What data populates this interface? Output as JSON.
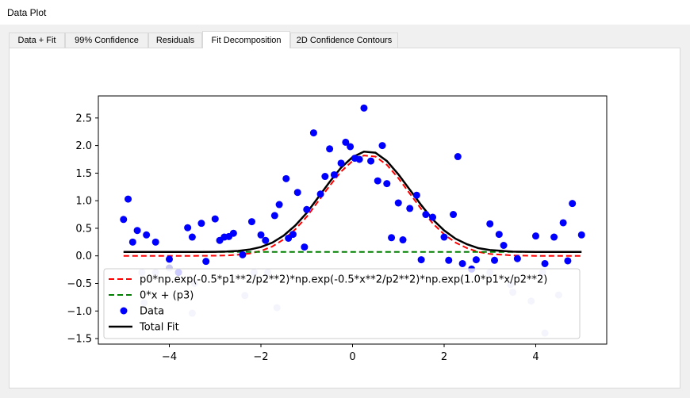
{
  "window": {
    "title": "Data Plot"
  },
  "tabs": [
    {
      "label": "Data + Fit",
      "active": false
    },
    {
      "label": "99% Confidence",
      "active": false
    },
    {
      "label": "Residuals",
      "active": false
    },
    {
      "label": "Fit Decomposition",
      "active": true
    },
    {
      "label": "2D Confidence Contours",
      "active": false
    }
  ],
  "chart_data": {
    "type": "line",
    "title": "",
    "xlabel": "",
    "ylabel": "",
    "xlim": [
      -5.55,
      5.55
    ],
    "ylim": [
      -1.6,
      2.9
    ],
    "xticks": [
      -4,
      -2,
      0,
      2,
      4
    ],
    "xtick_labels": [
      "−4",
      "−2",
      "0",
      "2",
      "4"
    ],
    "yticks": [
      -1.5,
      -1.0,
      -0.5,
      0.0,
      0.5,
      1.0,
      1.5,
      2.0,
      2.5
    ],
    "ytick_labels": [
      "−1.5",
      "−1.0",
      "−0.5",
      "0.0",
      "0.5",
      "1.0",
      "1.5",
      "2.0",
      "2.5"
    ],
    "grid": false,
    "legend_position": "lower-left",
    "colors": {
      "gaussian": "#ff0000",
      "baseline": "#008000",
      "data": "#0000ff",
      "total": "#000000"
    },
    "series": [
      {
        "name": "p0*np.exp(-0.5*p1**2/p2**2)*np.exp(-0.5*x**2/p2**2)*np.exp(1.0*p1*x/p2**2)",
        "kind": "dashed-line",
        "color": "#ff0000",
        "x": [
          -5.0,
          -4.5,
          -4.0,
          -3.5,
          -3.0,
          -2.75,
          -2.5,
          -2.25,
          -2.0,
          -1.75,
          -1.5,
          -1.25,
          -1.0,
          -0.75,
          -0.5,
          -0.25,
          0.0,
          0.25,
          0.5,
          0.75,
          1.0,
          1.25,
          1.5,
          1.75,
          2.0,
          2.25,
          2.5,
          2.75,
          3.0,
          3.5,
          4.0,
          4.5,
          5.0
        ],
        "y": [
          0.0,
          0.0,
          0.0,
          0.0,
          0.003,
          0.008,
          0.02,
          0.044,
          0.09,
          0.17,
          0.3,
          0.48,
          0.71,
          0.99,
          1.27,
          1.53,
          1.72,
          1.82,
          1.8,
          1.65,
          1.41,
          1.13,
          0.85,
          0.59,
          0.39,
          0.24,
          0.14,
          0.07,
          0.035,
          0.007,
          0.0,
          0.0,
          0.0
        ]
      },
      {
        "name": "0*x + (p3)",
        "kind": "dashed-line",
        "color": "#008000",
        "x": [
          -5.0,
          5.0
        ],
        "y": [
          0.07,
          0.07
        ]
      },
      {
        "name": "Data",
        "kind": "scatter",
        "color": "#0000ff",
        "x": [
          -5.0,
          -4.9,
          -4.8,
          -4.7,
          -4.5,
          -4.3,
          -4.0,
          -3.8,
          -3.6,
          -3.5,
          -3.3,
          -3.2,
          -3.0,
          -2.9,
          -2.8,
          -2.7,
          -2.6,
          -2.4,
          -2.2,
          -2.0,
          -1.9,
          -1.7,
          -1.6,
          -1.45,
          -1.4,
          -1.3,
          -1.2,
          -1.05,
          -1.0,
          -0.85,
          -0.7,
          -0.6,
          -0.5,
          -0.4,
          -0.25,
          -0.15,
          -0.05,
          0.05,
          0.15,
          0.25,
          0.4,
          0.55,
          0.65,
          0.75,
          0.85,
          1.0,
          1.1,
          1.25,
          1.4,
          1.5,
          1.6,
          1.75,
          2.0,
          2.1,
          2.2,
          2.3,
          2.4,
          2.6,
          2.7,
          3.0,
          3.1,
          3.2,
          3.3,
          3.6,
          4.0,
          4.2,
          4.4,
          4.6,
          4.7,
          4.8,
          5.0
        ],
        "y": [
          0.66,
          1.03,
          0.25,
          0.46,
          0.38,
          0.25,
          -0.06,
          -0.3,
          0.51,
          0.34,
          0.59,
          -0.1,
          0.67,
          0.28,
          0.34,
          0.35,
          0.41,
          0.02,
          0.62,
          0.38,
          0.28,
          0.73,
          0.93,
          1.4,
          0.32,
          0.39,
          1.15,
          0.16,
          0.84,
          2.23,
          1.12,
          1.44,
          1.94,
          1.47,
          1.68,
          2.06,
          1.98,
          1.77,
          1.75,
          2.68,
          1.72,
          1.36,
          2.0,
          1.31,
          0.33,
          0.96,
          0.29,
          0.86,
          1.1,
          -0.07,
          0.75,
          0.7,
          0.34,
          -0.08,
          0.75,
          1.8,
          -0.14,
          -0.24,
          -0.07,
          0.58,
          -0.08,
          0.39,
          0.19,
          -0.05,
          0.36,
          -0.14,
          0.34,
          0.6,
          -0.09,
          0.95,
          0.38
        ]
      },
      {
        "name": "Total Fit",
        "kind": "line",
        "color": "#000000",
        "x": [
          -5.0,
          -4.5,
          -4.0,
          -3.5,
          -3.0,
          -2.75,
          -2.5,
          -2.25,
          -2.0,
          -1.75,
          -1.5,
          -1.25,
          -1.0,
          -0.75,
          -0.5,
          -0.25,
          0.0,
          0.25,
          0.5,
          0.75,
          1.0,
          1.25,
          1.5,
          1.75,
          2.0,
          2.25,
          2.5,
          2.75,
          3.0,
          3.5,
          4.0,
          4.5,
          5.0
        ],
        "y": [
          0.07,
          0.07,
          0.07,
          0.07,
          0.073,
          0.078,
          0.09,
          0.114,
          0.16,
          0.24,
          0.37,
          0.55,
          0.78,
          1.06,
          1.34,
          1.6,
          1.79,
          1.89,
          1.87,
          1.72,
          1.48,
          1.2,
          0.92,
          0.66,
          0.46,
          0.31,
          0.21,
          0.14,
          0.105,
          0.077,
          0.07,
          0.07,
          0.07
        ]
      },
      {
        "name": "",
        "kind": "faint-scatter",
        "color": "#c8c8f0",
        "x": [
          -4.6,
          -4.55,
          -4.3,
          -4.0,
          -3.5,
          -3.45,
          -2.35,
          -2.15,
          -1.85,
          -1.65,
          3.0,
          3.45,
          3.5,
          3.9,
          4.15,
          4.2,
          4.5
        ],
        "y": [
          -0.3,
          -0.85,
          -0.3,
          -0.22,
          -1.04,
          -0.5,
          -0.72,
          -0.3,
          -0.3,
          -0.94,
          -0.3,
          -0.52,
          -0.66,
          -0.82,
          -0.3,
          -1.4,
          -0.71
        ]
      }
    ]
  }
}
